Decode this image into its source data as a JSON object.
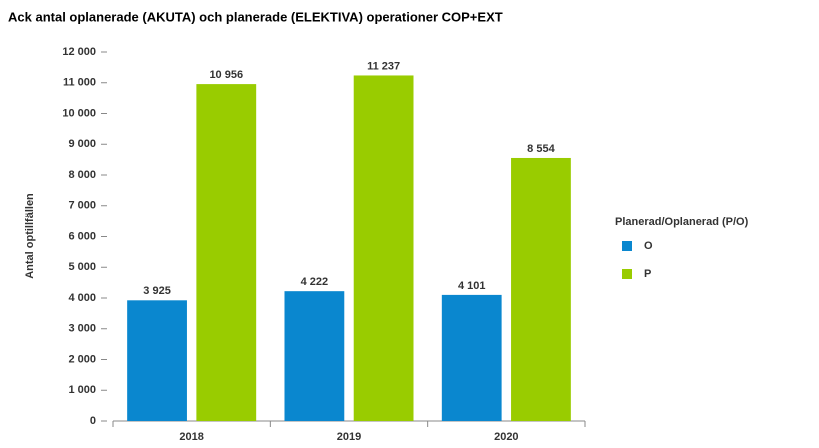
{
  "chart_data": {
    "type": "bar",
    "title": "Ack antal oplanerade (AKUTA) och planerade (ELEKTIVA) operationer COP+EXT",
    "y_label": "Antal optillfällen",
    "legend_title": "Planerad/Oplanerad (P/O)",
    "categories": [
      "2018",
      "2019",
      "2020"
    ],
    "series": [
      {
        "name": "O",
        "color": "#0a87cf",
        "values": [
          3925,
          4222,
          4101
        ],
        "value_labels": [
          "3 925",
          "4 222",
          "4 101"
        ]
      },
      {
        "name": "P",
        "color": "#99cc00",
        "values": [
          10956,
          11237,
          8554
        ],
        "value_labels": [
          "10 956",
          "11 237",
          "8 554"
        ]
      }
    ],
    "ylim": [
      0,
      12000
    ],
    "yticks": [
      0,
      {
        "value": 1000,
        "label": "1 000"
      },
      {
        "value": 2000,
        "label": "2 000"
      },
      {
        "value": 3000,
        "label": "3 000"
      },
      {
        "value": 4000,
        "label": "4 000"
      },
      {
        "value": 5000,
        "label": "5 000"
      },
      {
        "value": 6000,
        "label": "6 000"
      },
      {
        "value": 7000,
        "label": "7 000"
      },
      {
        "value": 8000,
        "label": "8 000"
      },
      {
        "value": 9000,
        "label": "9 000"
      },
      {
        "value": 10000,
        "label": "10 000"
      },
      {
        "value": 11000,
        "label": "11 000"
      },
      {
        "value": 12000,
        "label": "12 000"
      }
    ],
    "grid": false,
    "legend_position": "right"
  }
}
